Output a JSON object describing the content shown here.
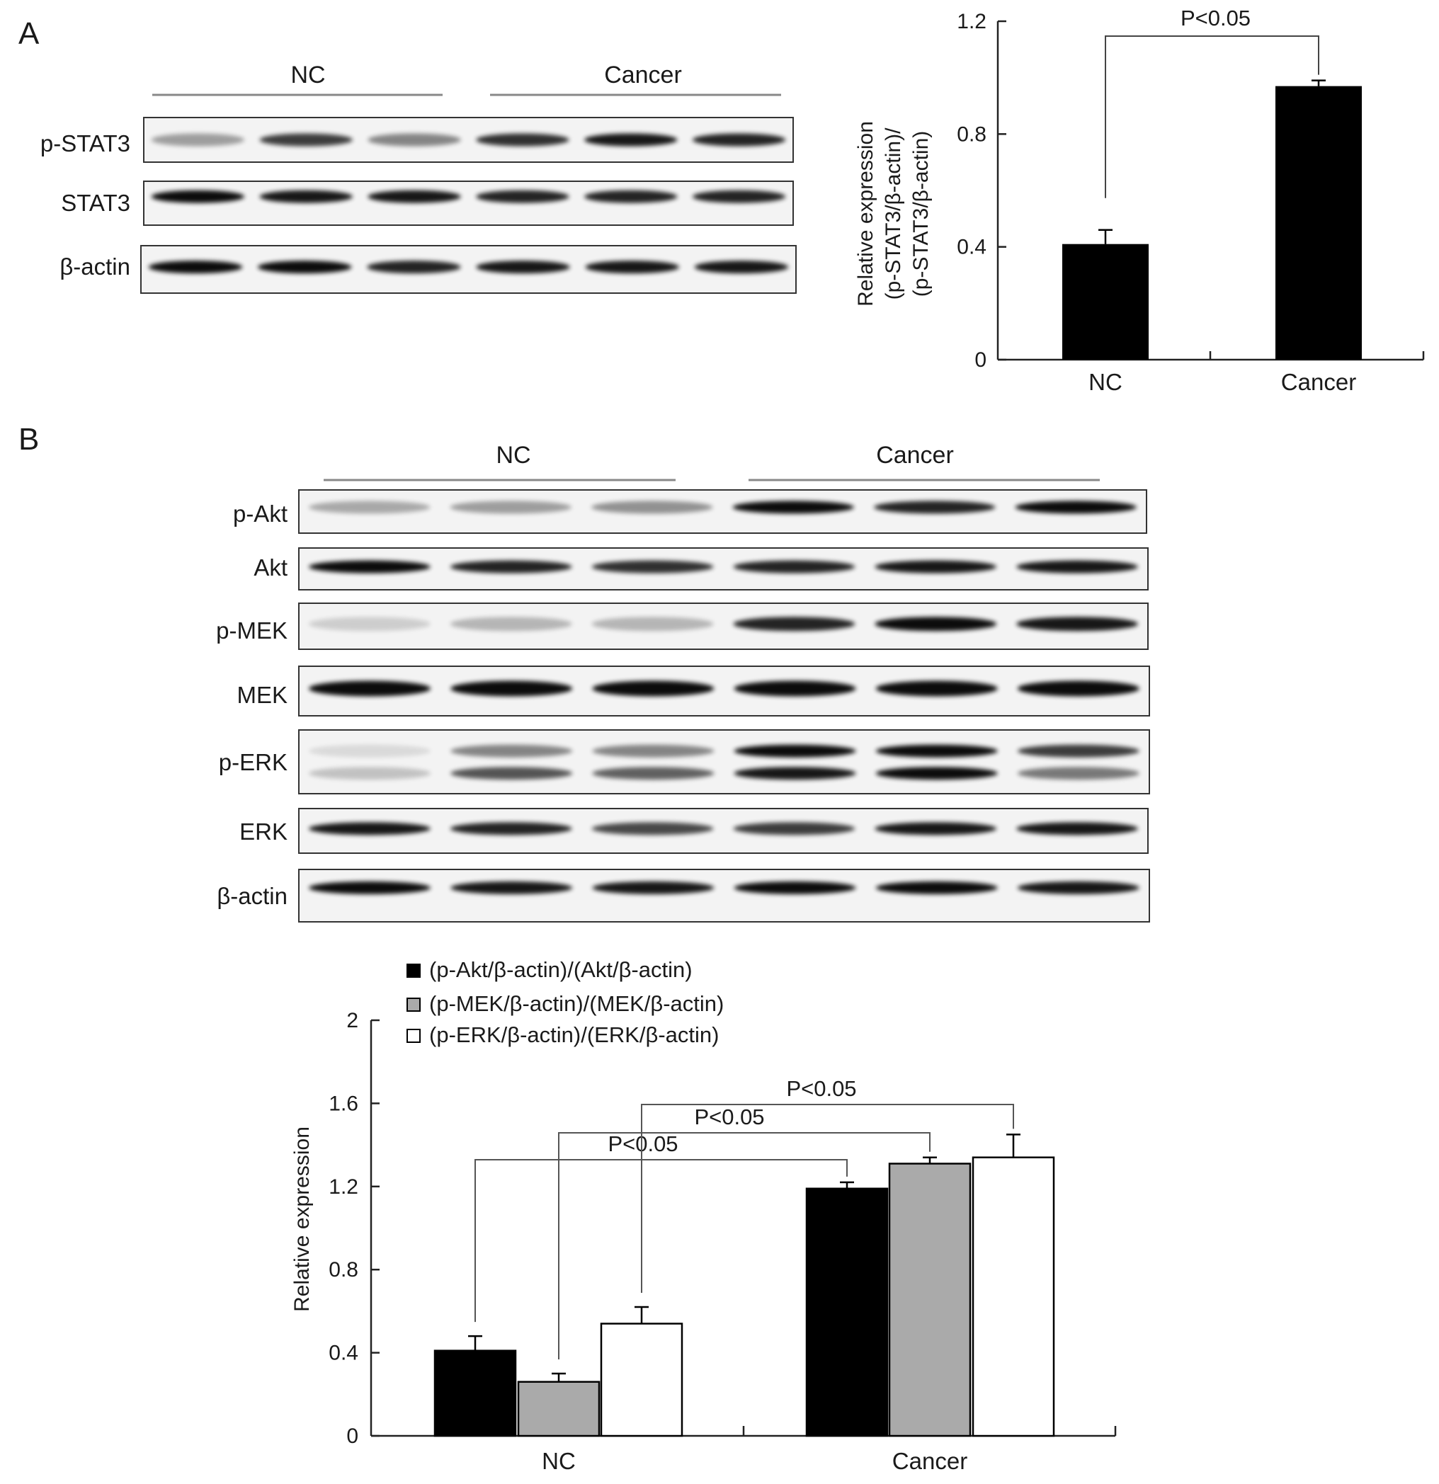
{
  "panel_a": {
    "letter": "A",
    "blot": {
      "groups": [
        "NC",
        "Cancer"
      ],
      "rows": [
        "p-STAT3",
        "STAT3",
        "β-actin"
      ]
    }
  },
  "panel_b": {
    "letter": "B",
    "blot": {
      "groups": [
        "NC",
        "Cancer"
      ],
      "rows": [
        "p-Akt",
        "Akt",
        "p-MEK",
        "MEK",
        "p-ERK",
        "ERK",
        "β-actin"
      ]
    }
  },
  "chart_data": [
    {
      "type": "bar",
      "ylabel_lines": [
        "Relative expression",
        "(p-STAT3/β-actin)/",
        "(p-STAT3/β-actin)"
      ],
      "ylim": [
        0,
        1.2
      ],
      "yticks": [
        0,
        0.4,
        0.8,
        1.2
      ],
      "ytick_labels": [
        "0",
        "0.4",
        "0.8",
        "1.2"
      ],
      "categories": [
        "NC",
        "Cancer"
      ],
      "values": [
        0.41,
        0.97
      ],
      "errors": [
        0.05,
        0.02
      ],
      "bar_color": "#000000",
      "significance": [
        {
          "text": "P<0.05",
          "between": [
            "NC",
            "Cancer"
          ]
        }
      ]
    },
    {
      "type": "bar",
      "ylabel": "Relative expression",
      "ylim": [
        0,
        2
      ],
      "yticks": [
        0,
        0.4,
        0.8,
        1.2,
        1.6,
        2
      ],
      "ytick_labels": [
        "0",
        "0.4",
        "0.8",
        "1.2",
        "1.6",
        "2"
      ],
      "categories": [
        "NC",
        "Cancer"
      ],
      "legend_position": "top-left",
      "series": [
        {
          "name": "(p-Akt/β-actin)/(Akt/β-actin)",
          "color": "#000000",
          "values": [
            0.41,
            1.19
          ],
          "errors": [
            0.07,
            0.03
          ]
        },
        {
          "name": "(p-MEK/β-actin)/(MEK/β-actin)",
          "color": "#aaaaaa",
          "values": [
            0.26,
            1.31
          ],
          "errors": [
            0.04,
            0.03
          ]
        },
        {
          "name": "(p-ERK/β-actin)/(ERK/β-actin)",
          "color": "#ffffff",
          "values": [
            0.54,
            1.34
          ],
          "errors": [
            0.08,
            0.11
          ]
        }
      ],
      "significance": [
        {
          "text": "P<0.05",
          "series": "(p-Akt/β-actin)/(Akt/β-actin)"
        },
        {
          "text": "P<0.05",
          "series": "(p-MEK/β-actin)/(MEK/β-actin)"
        },
        {
          "text": "P<0.05",
          "series": "(p-ERK/β-actin)/(ERK/β-actin)"
        }
      ]
    }
  ]
}
